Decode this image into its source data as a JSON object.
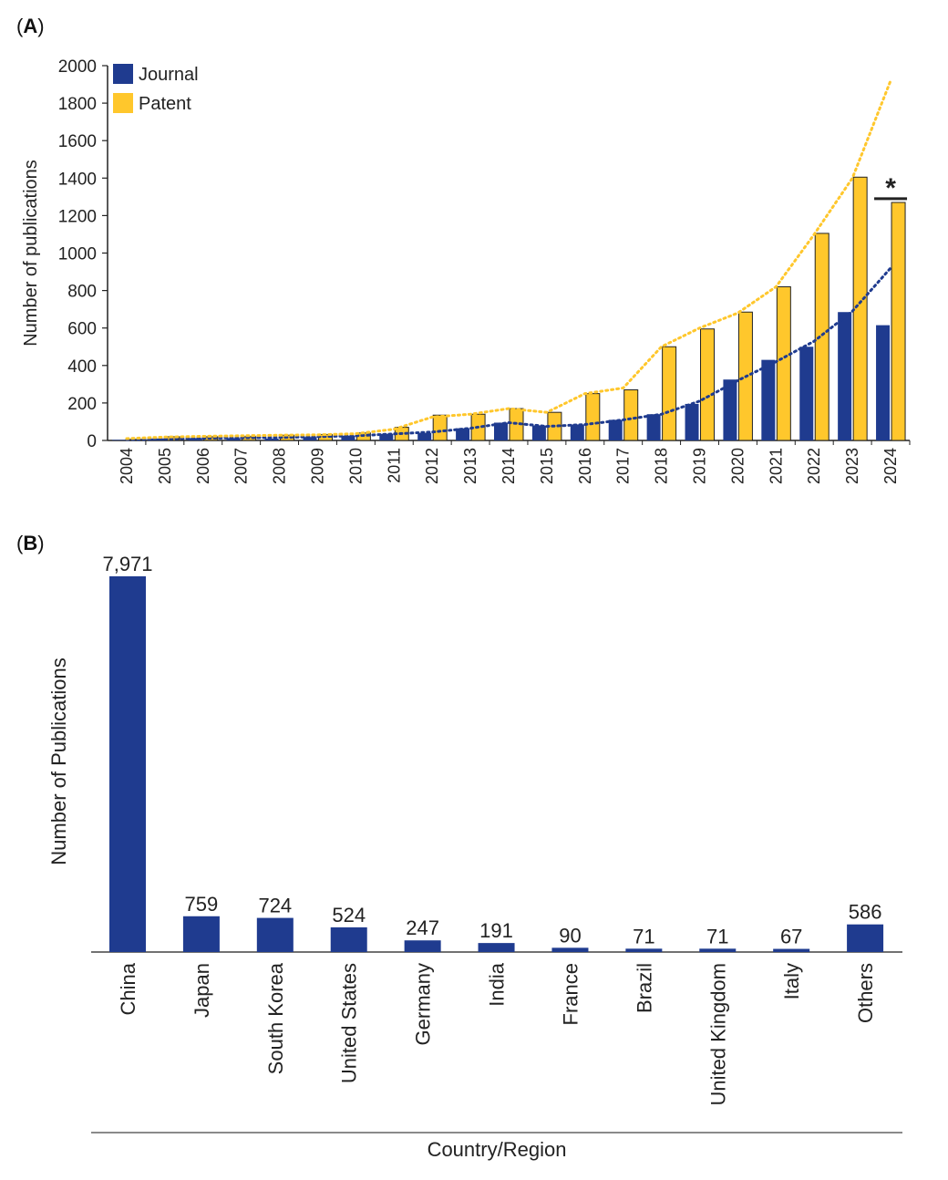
{
  "panels": {
    "a_label_open": "(",
    "a_label_letter": "A",
    "a_label_close": ")",
    "b_label_open": "(",
    "b_label_letter": "B",
    "b_label_close": ")"
  },
  "chart_data": [
    {
      "type": "bar",
      "title": "",
      "xlabel": "",
      "ylabel": "Number of publications",
      "ylim": [
        0,
        2000
      ],
      "yticks": [
        0,
        200,
        400,
        600,
        800,
        1000,
        1200,
        1400,
        1600,
        1800,
        2000
      ],
      "categories": [
        "2004",
        "2005",
        "2006",
        "2007",
        "2008",
        "2009",
        "2010",
        "2011",
        "2012",
        "2013",
        "2014",
        "2015",
        "2016",
        "2017",
        "2018",
        "2019",
        "2020",
        "2021",
        "2022",
        "2023",
        "2024"
      ],
      "series": [
        {
          "name": "Journal",
          "color": "#1f3b8f",
          "values": [
            3,
            10,
            12,
            12,
            10,
            18,
            25,
            35,
            40,
            65,
            95,
            80,
            85,
            110,
            140,
            195,
            325,
            430,
            500,
            685,
            615
          ]
        },
        {
          "name": "Patent",
          "color": "#ffc72c",
          "values": [
            5,
            20,
            20,
            20,
            28,
            32,
            40,
            70,
            135,
            140,
            170,
            150,
            250,
            270,
            500,
            595,
            685,
            820,
            1105,
            1405,
            1270
          ]
        }
      ],
      "trendlines": [
        {
          "series": "Journal",
          "style": "dotted",
          "color": "#1f3b8f",
          "values": [
            5,
            8,
            12,
            14,
            16,
            20,
            25,
            35,
            45,
            65,
            95,
            75,
            85,
            110,
            140,
            210,
            320,
            420,
            530,
            690,
            920
          ]
        },
        {
          "series": "Patent",
          "style": "dotted",
          "color": "#ffc72c",
          "values": [
            10,
            18,
            22,
            25,
            28,
            30,
            36,
            60,
            125,
            140,
            170,
            150,
            250,
            280,
            500,
            600,
            680,
            820,
            1100,
            1400,
            1920
          ]
        }
      ],
      "annotation": {
        "text": "*",
        "category": "2024"
      },
      "legend": "top-left"
    },
    {
      "type": "bar",
      "title": "",
      "xlabel": "Country/Region",
      "ylabel": "Number of Publications",
      "ylim": [
        0,
        7971
      ],
      "categories": [
        "China",
        "Japan",
        "South Korea",
        "United States",
        "Germany",
        "India",
        "France",
        "Brazil",
        "United Kingdom",
        "Italy",
        "Others"
      ],
      "values": [
        7971,
        759,
        724,
        524,
        247,
        191,
        90,
        71,
        71,
        67,
        586
      ],
      "data_labels": [
        "7,971",
        "759",
        "724",
        "524",
        "247",
        "191",
        "90",
        "71",
        "71",
        "67",
        "586"
      ],
      "color": "#1f3b8f"
    }
  ]
}
